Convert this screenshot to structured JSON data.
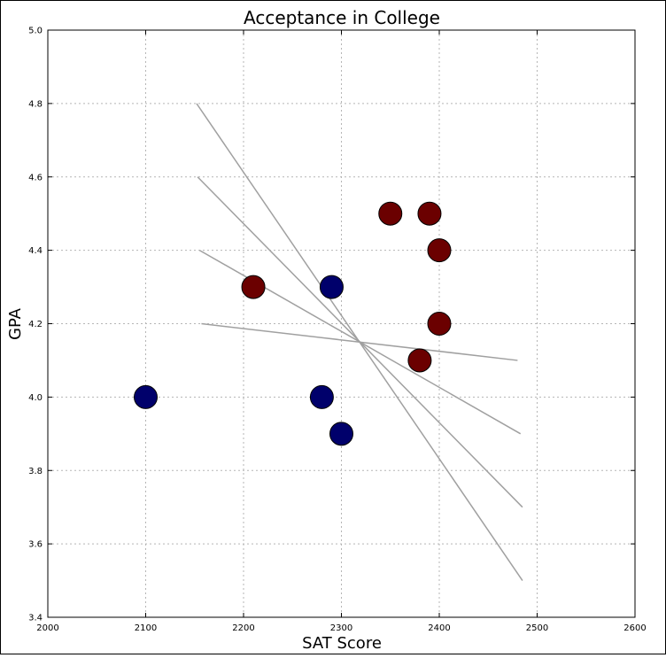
{
  "chart_data": {
    "type": "scatter",
    "title": "Acceptance in College",
    "xlabel": "SAT Score",
    "ylabel": "GPA",
    "xlim": [
      2000,
      2600
    ],
    "ylim": [
      3.4,
      5.0
    ],
    "xticks": [
      "2000",
      "2100",
      "2200",
      "2300",
      "2400",
      "2500",
      "2600"
    ],
    "xtick_values": [
      2000,
      2100,
      2200,
      2300,
      2400,
      2500,
      2600
    ],
    "yticks": [
      "3.4",
      "3.6",
      "3.8",
      "4.0",
      "4.2",
      "4.4",
      "4.6",
      "4.8",
      "5.0"
    ],
    "ytick_values": [
      3.4,
      3.6,
      3.8,
      4.0,
      4.2,
      4.4,
      4.6,
      4.8,
      5.0
    ],
    "grid": true,
    "series": [
      {
        "color": "#6b0000",
        "points": [
          {
            "x": 2210,
            "y": 4.3
          },
          {
            "x": 2350,
            "y": 4.5
          },
          {
            "x": 2390,
            "y": 4.5
          },
          {
            "x": 2400,
            "y": 4.4
          },
          {
            "x": 2400,
            "y": 4.2
          },
          {
            "x": 2380,
            "y": 4.1
          }
        ]
      },
      {
        "color": "#00006b",
        "points": [
          {
            "x": 2100,
            "y": 4.0
          },
          {
            "x": 2280,
            "y": 4.0
          },
          {
            "x": 2290,
            "y": 4.3
          },
          {
            "x": 2300,
            "y": 3.9
          }
        ]
      }
    ],
    "lines": [
      {
        "x1": 2152,
        "y1": 4.8,
        "x2": 2485,
        "y2": 3.5
      },
      {
        "x1": 2153,
        "y1": 4.6,
        "x2": 2485,
        "y2": 3.7
      },
      {
        "x1": 2155,
        "y1": 4.4,
        "x2": 2483,
        "y2": 3.9
      },
      {
        "x1": 2157,
        "y1": 4.2,
        "x2": 2480,
        "y2": 4.1
      }
    ],
    "line_color": "#a0a0a0"
  }
}
